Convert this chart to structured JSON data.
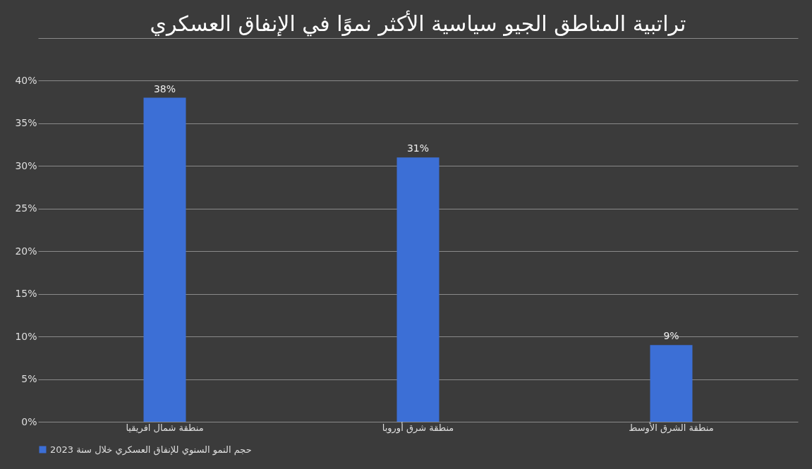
{
  "chart_data": {
    "type": "bar",
    "title": "تراتبية المناطق الجيو سياسية الأكثر نموًا في الإنفاق العسكري",
    "categories": [
      "منطقة شمال افريقيا",
      "منطقة شرق أوروبا",
      "منطقة الشرق الأوسط"
    ],
    "series": [
      {
        "name": "حجم النمو السنوي للإنفاق العسكري خلال سنة 2023",
        "color": "#3c6fd6",
        "values": [
          38,
          31,
          9
        ],
        "value_labels": [
          "38%",
          "31%",
          "9%"
        ]
      }
    ],
    "ylim": [
      0,
      45
    ],
    "yticks": [
      {
        "value": 0,
        "label": "0%"
      },
      {
        "value": 5,
        "label": "5%"
      },
      {
        "value": 10,
        "label": "10%"
      },
      {
        "value": 15,
        "label": "15%"
      },
      {
        "value": 20,
        "label": "20%"
      },
      {
        "value": 25,
        "label": "25%"
      },
      {
        "value": 30,
        "label": "30%"
      },
      {
        "value": 35,
        "label": "35%"
      },
      {
        "value": 40,
        "label": "40%"
      },
      {
        "value": 45,
        "label": null
      }
    ],
    "grid": "y",
    "legend": "bottom"
  }
}
